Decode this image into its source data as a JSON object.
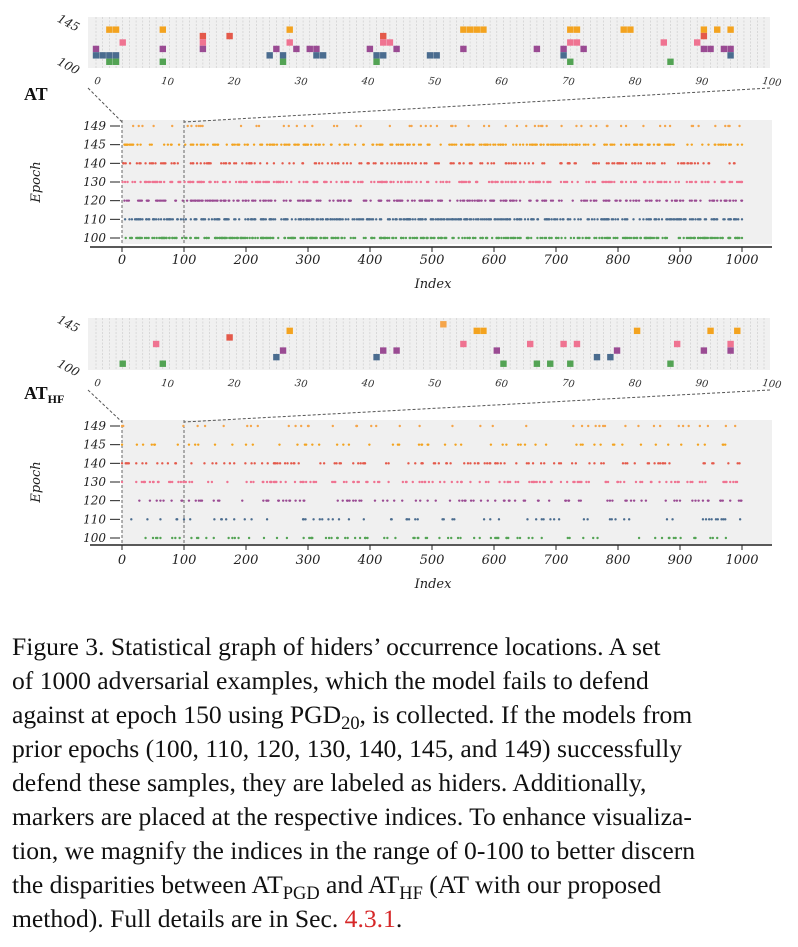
{
  "chart_data": [
    {
      "type": "scatter",
      "label": "AT",
      "label_sub": "",
      "zoom_range": [
        0,
        100
      ],
      "zoom_ticks": [
        "0",
        "10",
        "20",
        "30",
        "40",
        "50",
        "60",
        "70",
        "80",
        "90",
        "100"
      ],
      "zoom_epoch_labels": [
        "145",
        "100"
      ],
      "xlabel": "Index",
      "ylabel": "Epoch",
      "xlim": [
        0,
        1000
      ],
      "x_ticks": [
        "0",
        "100",
        "200",
        "300",
        "400",
        "500",
        "600",
        "700",
        "800",
        "900",
        "1000"
      ],
      "epochs": [
        "149",
        "145",
        "140",
        "130",
        "120",
        "110",
        "100"
      ],
      "series": [
        {
          "name": "149",
          "color": "#f5a54a",
          "density": 0.06
        },
        {
          "name": "145",
          "color": "#f3a31f",
          "density": 0.22
        },
        {
          "name": "140",
          "color": "#e4594a",
          "density": 0.17
        },
        {
          "name": "130",
          "color": "#ef7391",
          "density": 0.25
        },
        {
          "name": "120",
          "color": "#9a4b93",
          "density": 0.26
        },
        {
          "name": "110",
          "color": "#4a6c8f",
          "density": 0.29
        },
        {
          "name": "100",
          "color": "#53a354",
          "density": 0.34
        }
      ],
      "zoom_series": [
        {
          "name": "149",
          "color": "#f5a54a",
          "indices": []
        },
        {
          "name": "145",
          "color": "#f3a31f",
          "indices": [
            2,
            3,
            10,
            29,
            55,
            56,
            57,
            58,
            71,
            72,
            79,
            80,
            91,
            93,
            95
          ]
        },
        {
          "name": "140",
          "color": "#e4594a",
          "indices": [
            16,
            20,
            43,
            91
          ]
        },
        {
          "name": "130",
          "color": "#ef7391",
          "indices": [
            4,
            16,
            29,
            43,
            44,
            71,
            72,
            85,
            90
          ]
        },
        {
          "name": "120",
          "color": "#9a4b93",
          "indices": [
            0,
            10,
            16,
            27,
            30,
            32,
            33,
            41,
            45,
            55,
            66,
            70,
            73,
            91,
            92,
            94,
            95
          ]
        },
        {
          "name": "110",
          "color": "#4a6c8f",
          "indices": [
            0,
            1,
            2,
            3,
            26,
            28,
            33,
            34,
            42,
            43,
            50,
            51,
            70,
            95
          ]
        },
        {
          "name": "100",
          "color": "#53a354",
          "indices": [
            2,
            3,
            10,
            28,
            42,
            71,
            86
          ]
        }
      ]
    },
    {
      "type": "scatter",
      "label": "AT",
      "label_sub": "HF",
      "zoom_range": [
        0,
        100
      ],
      "zoom_ticks": [
        "0",
        "10",
        "20",
        "30",
        "40",
        "50",
        "60",
        "70",
        "80",
        "90",
        "100"
      ],
      "zoom_epoch_labels": [
        "145",
        "100"
      ],
      "xlabel": "Index",
      "ylabel": "Epoch",
      "xlim": [
        0,
        1000
      ],
      "x_ticks": [
        "0",
        "100",
        "200",
        "300",
        "400",
        "500",
        "600",
        "700",
        "800",
        "900",
        "1000"
      ],
      "epochs": [
        "149",
        "145",
        "140",
        "130",
        "120",
        "110",
        "100"
      ],
      "series": [
        {
          "name": "149",
          "color": "#f5a54a",
          "density": 0.04
        },
        {
          "name": "145",
          "color": "#f3a31f",
          "density": 0.07
        },
        {
          "name": "140",
          "color": "#e4594a",
          "density": 0.1
        },
        {
          "name": "130",
          "color": "#ef7391",
          "density": 0.14
        },
        {
          "name": "120",
          "color": "#9a4b93",
          "density": 0.1
        },
        {
          "name": "110",
          "color": "#4a6c8f",
          "density": 0.08
        },
        {
          "name": "100",
          "color": "#53a354",
          "density": 0.09
        }
      ],
      "zoom_series": [
        {
          "name": "149",
          "color": "#f5a54a",
          "indices": [
            52
          ]
        },
        {
          "name": "145",
          "color": "#f3a31f",
          "indices": [
            29,
            57,
            58,
            81,
            92,
            96
          ]
        },
        {
          "name": "140",
          "color": "#e4594a",
          "indices": [
            20
          ]
        },
        {
          "name": "130",
          "color": "#ef7391",
          "indices": [
            9,
            55,
            65,
            70,
            72,
            87,
            95
          ]
        },
        {
          "name": "120",
          "color": "#9a4b93",
          "indices": [
            28,
            43,
            45,
            60,
            78,
            91,
            95
          ]
        },
        {
          "name": "110",
          "color": "#4a6c8f",
          "indices": [
            27,
            42,
            75,
            77
          ]
        },
        {
          "name": "100",
          "color": "#53a354",
          "indices": [
            4,
            10,
            61,
            66,
            68,
            71,
            86
          ]
        }
      ]
    }
  ],
  "caption": {
    "lines": [
      "Figure 3. Statistical graph of hiders’ occurrence locations. A set",
      "of 1000 adversarial examples, which the model fails to defend",
      "against at epoch 150 using PGD",
      "prior epochs (100, 110, 120, 130, 140, 145, and 149) successfully",
      "defend these samples, they are labeled as hiders. Additionally,",
      "markers are placed at the respective indices. To enhance visualiza-",
      "tion, we magnify the indices in the range of 0-100 to better discern",
      "the disparities between AT",
      "method). Full details are in Sec. "
    ],
    "pgd_sub": "20",
    "line3_tail": ", is collected. If the models from",
    "line8_mid": " and AT",
    "sub_pgd": "PGD",
    "sub_hf": "HF",
    "line8_tail": " (AT with our proposed",
    "ref": "4.3.1",
    "line9_tail": "."
  }
}
